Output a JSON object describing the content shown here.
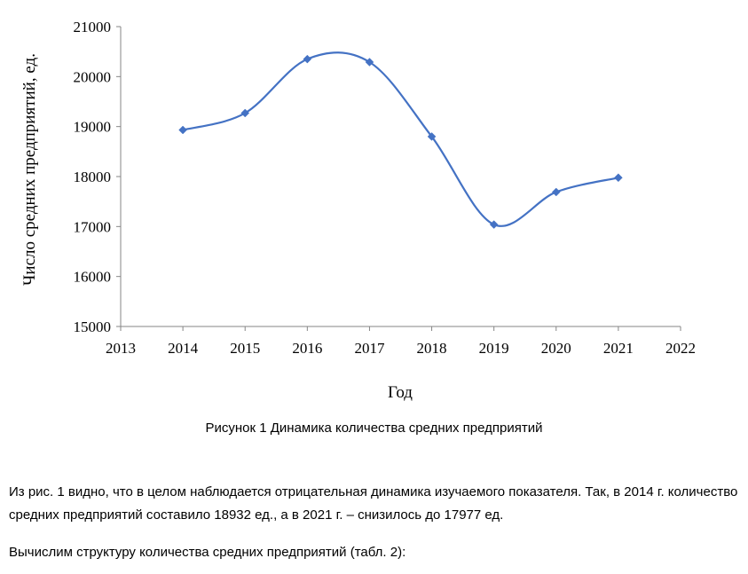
{
  "chart_data": {
    "type": "line",
    "x": [
      2014,
      2015,
      2016,
      2017,
      2018,
      2019,
      2020,
      2021
    ],
    "series": [
      {
        "values": [
          18932,
          19270,
          20350,
          20290,
          18800,
          17040,
          17690,
          17977
        ]
      }
    ],
    "xlim": [
      2013,
      2022
    ],
    "ylim": [
      15000,
      21000
    ],
    "xticks": [
      "2013",
      "2014",
      "2015",
      "2016",
      "2017",
      "2018",
      "2019",
      "2020",
      "2021",
      "2022"
    ],
    "yticks": [
      "15000",
      "16000",
      "17000",
      "18000",
      "19000",
      "20000",
      "21000"
    ],
    "xlabel": "Год",
    "ylabel": "Число средних предприятий, ед.",
    "smooth": true,
    "marker": "diamond",
    "grid": false,
    "legend": "none",
    "line_color": "#4472C4"
  },
  "caption": "Рисунок 1 Динамика количества средних предприятий",
  "paragraphs": [
    "Из рис. 1 видно, что в целом наблюдается отрицательная динамика изучаемого показателя. Так, в 2014 г. количество средних предприятий составило 18932 ед., а в 2021 г. – снизилось до 17977 ед.",
    "Вычислим структуру количества средних предприятий (табл. 2):"
  ]
}
